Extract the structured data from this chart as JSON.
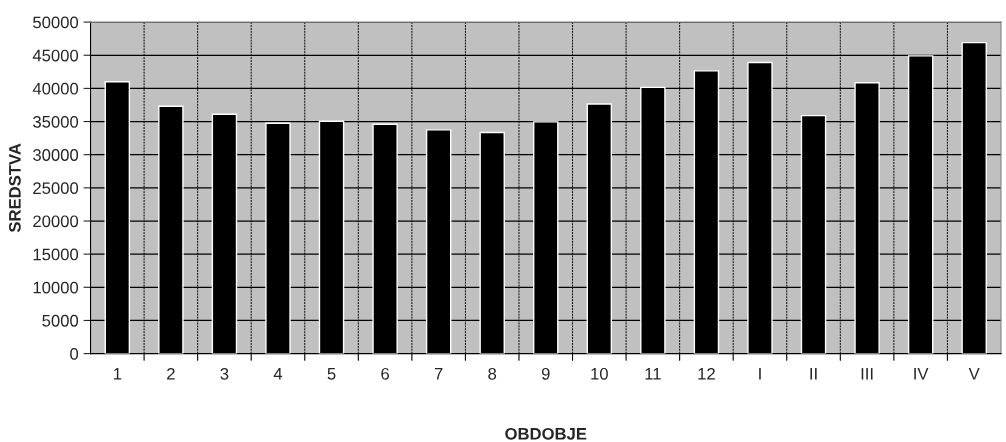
{
  "chart_data": {
    "type": "bar",
    "xlabel": "OBDOBJE",
    "ylabel": "SREDSTVA",
    "categories": [
      "1",
      "2",
      "3",
      "4",
      "5",
      "6",
      "7",
      "8",
      "9",
      "10",
      "11",
      "12",
      "I",
      "II",
      "III",
      "IV",
      "V"
    ],
    "values": [
      41000,
      37300,
      36100,
      34750,
      35050,
      34600,
      33750,
      33350,
      34950,
      37650,
      40150,
      42650,
      43900,
      35900,
      40850,
      44900,
      46900
    ],
    "color": "#000000",
    "ylim": [
      0,
      50000
    ],
    "yticks": [
      0,
      5000,
      10000,
      15000,
      20000,
      25000,
      30000,
      35000,
      40000,
      45000,
      50000
    ],
    "grid": true
  }
}
